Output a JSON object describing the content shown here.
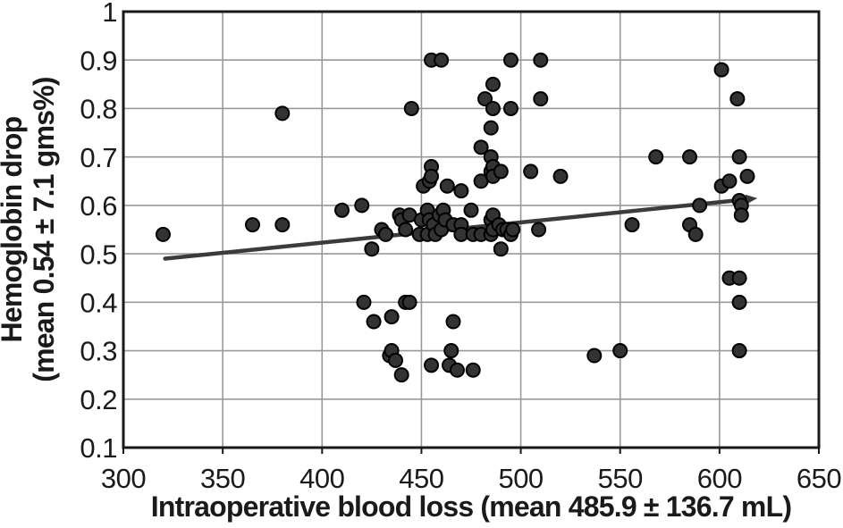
{
  "figure": {
    "background": "#ffffff"
  },
  "chart_data": {
    "type": "scatter",
    "title": "",
    "xlabel": "Intraoperative blood loss (mean 485.9 ± 136.7 mL)",
    "ylabel_line1": "Hemoglobin drop",
    "ylabel_line2": "(mean 0.54 ± 7.1 gms%)",
    "xlim": [
      300,
      650
    ],
    "ylim": [
      0.1,
      1.0
    ],
    "x_ticks": [
      300,
      350,
      400,
      450,
      500,
      550,
      600,
      650
    ],
    "y_ticks": [
      0.1,
      0.2,
      0.3,
      0.4,
      0.5,
      0.6,
      0.7,
      0.8,
      0.9,
      1.0
    ],
    "y_tick_labels": [
      "0.1",
      "0.2",
      "0.3",
      "0.4",
      "0.5",
      "0.6",
      "0.7",
      "0.8",
      "0.9",
      "1"
    ],
    "grid": true,
    "legend": "none",
    "marker": {
      "radius": 7.5
    },
    "trend_line": {
      "x1": 321,
      "y1": 0.49,
      "x2": 615,
      "y2": 0.613
    },
    "colors": {
      "point_fill": "#333333",
      "point_stroke": "#000000",
      "grid": "#999999",
      "border": "#1a1a1a",
      "trend": "#3b3b3b",
      "text": "#1a1a1a",
      "background": "#ffffff"
    },
    "points": [
      [
        320,
        0.54
      ],
      [
        365,
        0.56
      ],
      [
        380,
        0.56
      ],
      [
        380,
        0.79
      ],
      [
        410,
        0.59
      ],
      [
        420,
        0.6
      ],
      [
        421,
        0.4
      ],
      [
        425,
        0.51
      ],
      [
        426,
        0.36
      ],
      [
        430,
        0.55
      ],
      [
        432,
        0.54
      ],
      [
        434,
        0.29
      ],
      [
        435,
        0.37
      ],
      [
        435,
        0.3
      ],
      [
        437,
        0.28
      ],
      [
        439,
        0.58
      ],
      [
        440,
        0.57
      ],
      [
        440,
        0.25
      ],
      [
        442,
        0.55
      ],
      [
        442,
        0.4
      ],
      [
        444,
        0.58
      ],
      [
        444,
        0.4
      ],
      [
        445,
        0.8
      ],
      [
        449,
        0.54
      ],
      [
        450,
        0.57
      ],
      [
        451,
        0.64
      ],
      [
        453,
        0.59
      ],
      [
        453,
        0.54
      ],
      [
        454,
        0.65
      ],
      [
        454,
        0.57
      ],
      [
        455,
        0.9
      ],
      [
        455,
        0.68
      ],
      [
        455,
        0.66
      ],
      [
        455,
        0.27
      ],
      [
        456,
        0.56
      ],
      [
        457,
        0.54
      ],
      [
        459,
        0.58
      ],
      [
        460,
        0.9
      ],
      [
        460,
        0.55
      ],
      [
        461,
        0.59
      ],
      [
        462,
        0.57
      ],
      [
        463,
        0.64
      ],
      [
        464,
        0.27
      ],
      [
        465,
        0.3
      ],
      [
        466,
        0.36
      ],
      [
        466,
        0.56
      ],
      [
        468,
        0.26
      ],
      [
        470,
        0.63
      ],
      [
        470,
        0.56
      ],
      [
        470,
        0.54
      ],
      [
        475,
        0.59
      ],
      [
        476,
        0.54
      ],
      [
        476,
        0.26
      ],
      [
        480,
        0.72
      ],
      [
        480,
        0.65
      ],
      [
        480,
        0.54
      ],
      [
        482,
        0.82
      ],
      [
        485,
        0.76
      ],
      [
        485,
        0.7
      ],
      [
        485,
        0.67
      ],
      [
        485,
        0.57
      ],
      [
        485,
        0.54
      ],
      [
        486,
        0.85
      ],
      [
        486,
        0.8
      ],
      [
        486,
        0.68
      ],
      [
        486,
        0.66
      ],
      [
        486,
        0.58
      ],
      [
        486,
        0.55
      ],
      [
        489,
        0.56
      ],
      [
        490,
        0.67
      ],
      [
        490,
        0.51
      ],
      [
        491,
        0.55
      ],
      [
        493,
        0.55
      ],
      [
        495,
        0.9
      ],
      [
        495,
        0.8
      ],
      [
        495,
        0.54
      ],
      [
        496,
        0.55
      ],
      [
        505,
        0.67
      ],
      [
        509,
        0.55
      ],
      [
        510,
        0.9
      ],
      [
        510,
        0.82
      ],
      [
        520,
        0.66
      ],
      [
        537,
        0.29
      ],
      [
        550,
        0.3
      ],
      [
        556,
        0.56
      ],
      [
        568,
        0.7
      ],
      [
        585,
        0.7
      ],
      [
        585,
        0.56
      ],
      [
        588,
        0.54
      ],
      [
        590,
        0.6
      ],
      [
        601,
        0.88
      ],
      [
        601,
        0.64
      ],
      [
        605,
        0.65
      ],
      [
        605,
        0.45
      ],
      [
        609,
        0.82
      ],
      [
        610,
        0.7
      ],
      [
        610,
        0.61
      ],
      [
        610,
        0.45
      ],
      [
        610,
        0.4
      ],
      [
        610,
        0.3
      ],
      [
        611,
        0.6
      ],
      [
        611,
        0.58
      ],
      [
        614,
        0.66
      ]
    ]
  }
}
